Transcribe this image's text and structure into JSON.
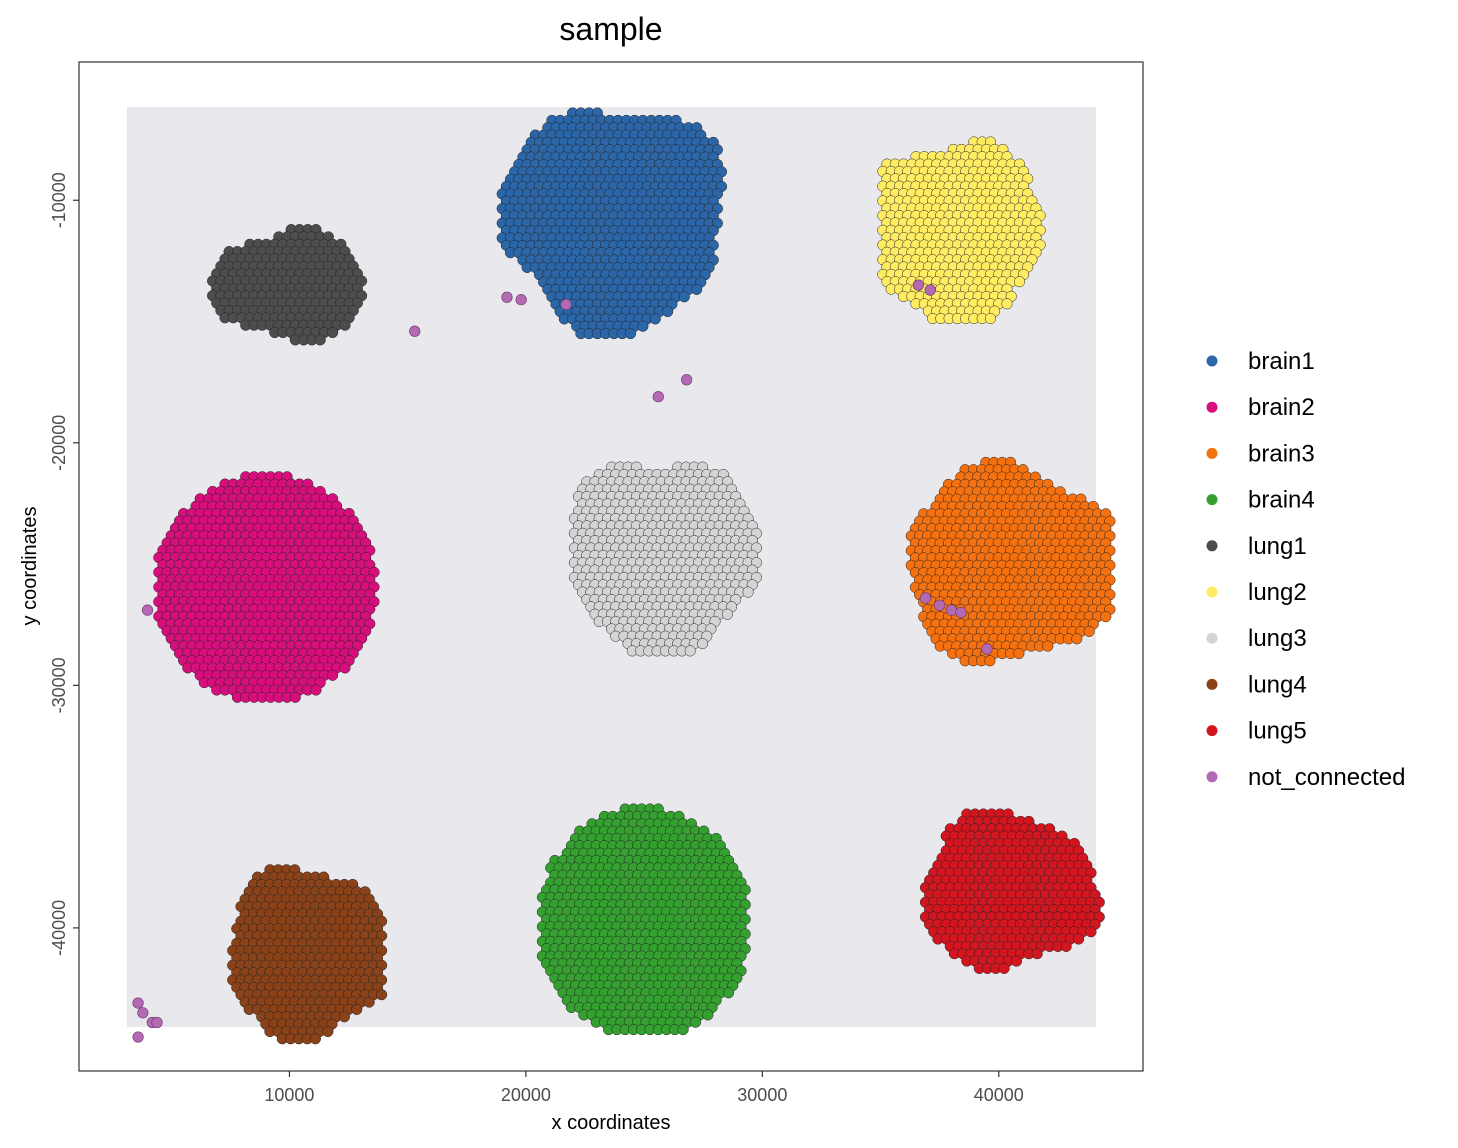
{
  "chart_data": {
    "type": "scatter",
    "title": "sample",
    "xlabel": "x coordinates",
    "ylabel": "y coordinates",
    "xlim": [
      1100,
      46100
    ],
    "ylim": [
      -45900,
      -4300
    ],
    "x_ticks": [
      10000,
      20000,
      30000,
      40000
    ],
    "y_ticks": [
      -10000,
      -20000,
      -30000,
      -40000
    ],
    "x_tick_labels": [
      "10000",
      "20000",
      "30000",
      "40000"
    ],
    "y_tick_labels": [
      "-10000",
      "-20000",
      "-30000",
      "-40000"
    ],
    "grid": false,
    "legend_position": "right",
    "background_image": "tissue-image",
    "spot_spacing": 350,
    "series": [
      {
        "name": "brain1",
        "color": "#2B66A8",
        "shape": "blob",
        "center": [
          23700,
          -10700
        ],
        "rx": 9500,
        "ry": 9300,
        "bounds": {
          "x": [
            19000,
            28400
          ],
          "y": [
            -15500,
            -6100
          ]
        }
      },
      {
        "name": "brain2",
        "color": "#D90E7D",
        "shape": "circle",
        "center": [
          9000,
          -26000
        ],
        "rx": 9400,
        "ry": 9400,
        "bounds": {
          "x": [
            4300,
            13700
          ],
          "y": [
            -30800,
            -21400
          ]
        }
      },
      {
        "name": "brain3",
        "color": "#F5700F",
        "shape": "blob",
        "center": [
          40600,
          -25000
        ],
        "rx": 9200,
        "ry": 8000,
        "bounds": {
          "x": [
            35600,
            44800
          ],
          "y": [
            -29000,
            -20200
          ]
        }
      },
      {
        "name": "brain4",
        "color": "#34A02F",
        "shape": "circle",
        "center": [
          25000,
          -39800
        ],
        "rx": 9000,
        "ry": 9600,
        "bounds": {
          "x": [
            20700,
            29300
          ],
          "y": [
            -44300,
            -35100
          ]
        }
      },
      {
        "name": "lung1",
        "color": "#4D4D4D",
        "shape": "blob",
        "center": [
          10000,
          -13500
        ],
        "rx": 6500,
        "ry": 4500,
        "bounds": {
          "x": [
            6400,
            13100
          ],
          "y": [
            -16000,
            -10300
          ]
        }
      },
      {
        "name": "lung2",
        "color": "#FFEC63",
        "shape": "blob",
        "center": [
          38000,
          -11300
        ],
        "rx": 7800,
        "ry": 7500,
        "bounds": {
          "x": [
            35100,
            42700
          ],
          "y": [
            -15000,
            -7600
          ]
        }
      },
      {
        "name": "lung3",
        "color": "#D4D4D4",
        "shape": "blob",
        "center": [
          25800,
          -24700
        ],
        "rx": 8000,
        "ry": 8200,
        "bounds": {
          "x": [
            21700,
            29900
          ],
          "y": [
            -28800,
            -20700
          ]
        }
      },
      {
        "name": "lung4",
        "color": "#8B4219",
        "shape": "blob",
        "center": [
          10800,
          -41000
        ],
        "rx": 7000,
        "ry": 7000,
        "bounds": {
          "x": [
            6900,
            13900
          ],
          "y": [
            -44600,
            -37300
          ]
        }
      },
      {
        "name": "lung5",
        "color": "#D3151F",
        "shape": "blob",
        "center": [
          40400,
          -38500
        ],
        "rx": 7500,
        "ry": 6400,
        "bounds": {
          "x": [
            36900,
            44400
          ],
          "y": [
            -41900,
            -34700
          ]
        }
      },
      {
        "name": "not_connected",
        "color": "#B469B4",
        "shape": "points",
        "points": [
          [
            15300,
            -15400
          ],
          [
            25600,
            -18100
          ],
          [
            26800,
            -17400
          ],
          [
            19200,
            -14000
          ],
          [
            19800,
            -14100
          ],
          [
            36600,
            -13500
          ],
          [
            37100,
            -13700
          ],
          [
            36900,
            -26400
          ],
          [
            37500,
            -26700
          ],
          [
            38000,
            -26900
          ],
          [
            38400,
            -27000
          ],
          [
            39500,
            -28500
          ],
          [
            3600,
            -43100
          ],
          [
            3800,
            -43500
          ],
          [
            4200,
            -43900
          ],
          [
            4400,
            -43900
          ],
          [
            3600,
            -44500
          ],
          [
            4000,
            -26900
          ],
          [
            21700,
            -14300
          ]
        ]
      }
    ]
  }
}
